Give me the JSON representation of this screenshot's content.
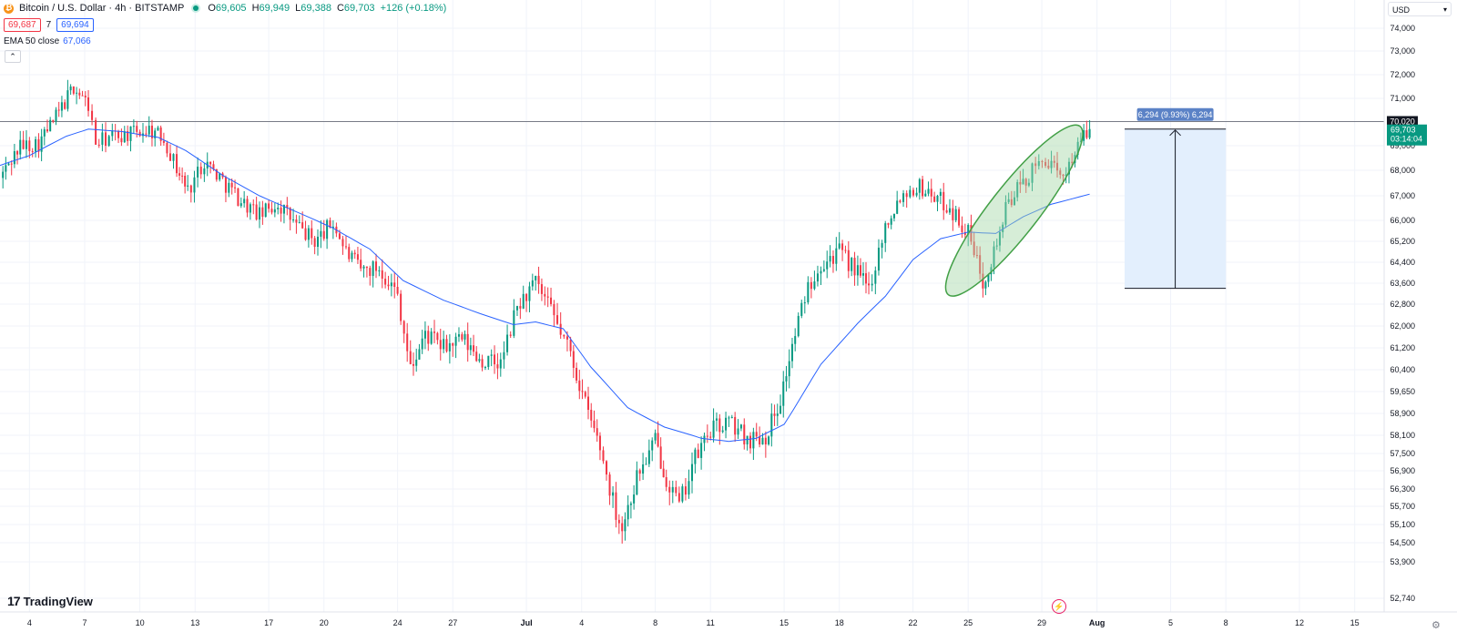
{
  "header": {
    "symbol": "Bitcoin / U.S. Dollar · 4h · BITSTAMP",
    "open_key": "O",
    "open": "69,605",
    "high_key": "H",
    "high": "69,949",
    "low_key": "L",
    "low": "69,388",
    "close_key": "C",
    "close": "69,703",
    "change": "+126 (+0.18%)",
    "bid": "69,687",
    "spread": "7",
    "ask": "69,694",
    "indicator_name": "EMA 50 close",
    "indicator_value": "67,066"
  },
  "currency_select": "USD",
  "brand": "TradingView",
  "colors": {
    "up": "#089981",
    "down": "#f23645",
    "ema": "#2962ff",
    "range_fill": "#e3effd",
    "ellipse_fill": "#a5d6a7",
    "ellipse_stroke": "#43a047"
  },
  "icons": {
    "collapse": "chevron-up-icon",
    "settings": "gear-icon",
    "replay": "lightning-icon"
  },
  "chart_data": {
    "type": "candlestick",
    "y_ticks": [
      "74,000",
      "73,000",
      "72,000",
      "71,000",
      "69,000",
      "68,000",
      "67,000",
      "66,000",
      "65,200",
      "64,400",
      "63,600",
      "62,800",
      "62,000",
      "61,200",
      "60,400",
      "59,650",
      "58,900",
      "58,100",
      "57,500",
      "56,900",
      "56,300",
      "55,700",
      "55,100",
      "54,500",
      "53,900",
      "52,740"
    ],
    "y_tick_values": [
      74000,
      73000,
      72000,
      71000,
      69000,
      68000,
      67000,
      66000,
      65200,
      64400,
      63600,
      62800,
      62000,
      61200,
      60400,
      59650,
      58900,
      58100,
      57500,
      56900,
      56300,
      55700,
      55100,
      54500,
      53900,
      52740
    ],
    "x_ticks": [
      "4",
      "7",
      "10",
      "13",
      "17",
      "20",
      "24",
      "27",
      "Jul",
      "4",
      "8",
      "11",
      "15",
      "18",
      "22",
      "25",
      "29",
      "Aug",
      "5",
      "8",
      "12",
      "15"
    ],
    "x_tick_days": [
      4,
      7,
      10,
      13,
      17,
      20,
      24,
      27,
      31,
      34,
      38,
      41,
      45,
      48,
      52,
      55,
      59,
      62,
      66,
      69,
      73,
      76
    ],
    "x_start_day": 2.4,
    "x_end_day": 77.6,
    "horizontal_line": {
      "value": 70020,
      "label": "70,020"
    },
    "last_price": {
      "value": 69703,
      "label": "69,703",
      "countdown": "03:14:04"
    },
    "measure": {
      "label": "6,294 (9.93%) 6,294",
      "from": 63406,
      "to": 69700,
      "start_day": 63.5,
      "end_day": 69
    },
    "highlight_ellipse": {
      "center_day": 57.5,
      "center_value": 66400,
      "radius_days": 2.4,
      "radius_value": 3900
    },
    "anchors": [
      [
        2.4,
        67700
      ],
      [
        3.5,
        69000
      ],
      [
        4.5,
        69100
      ],
      [
        5.6,
        70400
      ],
      [
        6.4,
        71500
      ],
      [
        7.2,
        70700
      ],
      [
        7.6,
        69100
      ],
      [
        8.5,
        69400
      ],
      [
        9.5,
        69500
      ],
      [
        10.5,
        69700
      ],
      [
        11.3,
        69300
      ],
      [
        12,
        68100
      ],
      [
        12.6,
        67200
      ],
      [
        13.5,
        68400
      ],
      [
        14.5,
        67600
      ],
      [
        15.5,
        66800
      ],
      [
        16.5,
        66200
      ],
      [
        17.5,
        66700
      ],
      [
        18.5,
        65800
      ],
      [
        19.5,
        65200
      ],
      [
        20.5,
        65900
      ],
      [
        21.2,
        64800
      ],
      [
        22,
        64100
      ],
      [
        23,
        64200
      ],
      [
        24,
        63200
      ],
      [
        24.7,
        60400
      ],
      [
        25.5,
        61700
      ],
      [
        26.5,
        61200
      ],
      [
        27.5,
        61500
      ],
      [
        28.6,
        60700
      ],
      [
        29.6,
        60600
      ],
      [
        30.5,
        62700
      ],
      [
        31.5,
        63600
      ],
      [
        32.5,
        62300
      ],
      [
        33.4,
        61000
      ],
      [
        34.2,
        59200
      ],
      [
        35,
        57700
      ],
      [
        35.7,
        55900
      ],
      [
        36.2,
        55000
      ],
      [
        37,
        56700
      ],
      [
        38,
        57900
      ],
      [
        38.6,
        56700
      ],
      [
        39.3,
        55700
      ],
      [
        40,
        57100
      ],
      [
        41,
        58300
      ],
      [
        42,
        58600
      ],
      [
        43,
        58000
      ],
      [
        44,
        58100
      ],
      [
        44.8,
        59400
      ],
      [
        45.6,
        61700
      ],
      [
        46.3,
        63500
      ],
      [
        47,
        64400
      ],
      [
        48,
        64800
      ],
      [
        49,
        64000
      ],
      [
        49.6,
        63400
      ],
      [
        50.5,
        65800
      ],
      [
        51.3,
        67000
      ],
      [
        52.2,
        67400
      ],
      [
        53,
        67100
      ],
      [
        54,
        66500
      ],
      [
        55,
        65500
      ],
      [
        55.8,
        63700
      ],
      [
        56.4,
        64800
      ],
      [
        57.2,
        66800
      ],
      [
        58.3,
        67800
      ],
      [
        59.2,
        68500
      ],
      [
        60,
        67600
      ],
      [
        60.8,
        68800
      ],
      [
        61.6,
        69703
      ]
    ],
    "ema_anchors": [
      [
        2.4,
        68200
      ],
      [
        4,
        68600
      ],
      [
        6,
        69400
      ],
      [
        7.2,
        69700
      ],
      [
        9,
        69600
      ],
      [
        11,
        69350
      ],
      [
        12.5,
        68800
      ],
      [
        14.5,
        67800
      ],
      [
        16.5,
        67000
      ],
      [
        18.5,
        66350
      ],
      [
        20.5,
        65700
      ],
      [
        22.5,
        64900
      ],
      [
        24.3,
        63700
      ],
      [
        26.5,
        62950
      ],
      [
        28.5,
        62450
      ],
      [
        30.3,
        62050
      ],
      [
        31.5,
        62150
      ],
      [
        33,
        61900
      ],
      [
        34.5,
        60500
      ],
      [
        36.5,
        59100
      ],
      [
        38.5,
        58400
      ],
      [
        40.5,
        58000
      ],
      [
        42,
        57900
      ],
      [
        43.5,
        58000
      ],
      [
        45,
        58500
      ],
      [
        47,
        60600
      ],
      [
        49,
        62100
      ],
      [
        50.5,
        63100
      ],
      [
        52,
        64500
      ],
      [
        53.5,
        65300
      ],
      [
        55,
        65550
      ],
      [
        56.5,
        65500
      ],
      [
        58,
        66150
      ],
      [
        59.5,
        66650
      ],
      [
        61.6,
        67066
      ]
    ],
    "grid": true,
    "ylabel": "",
    "xlabel": ""
  }
}
